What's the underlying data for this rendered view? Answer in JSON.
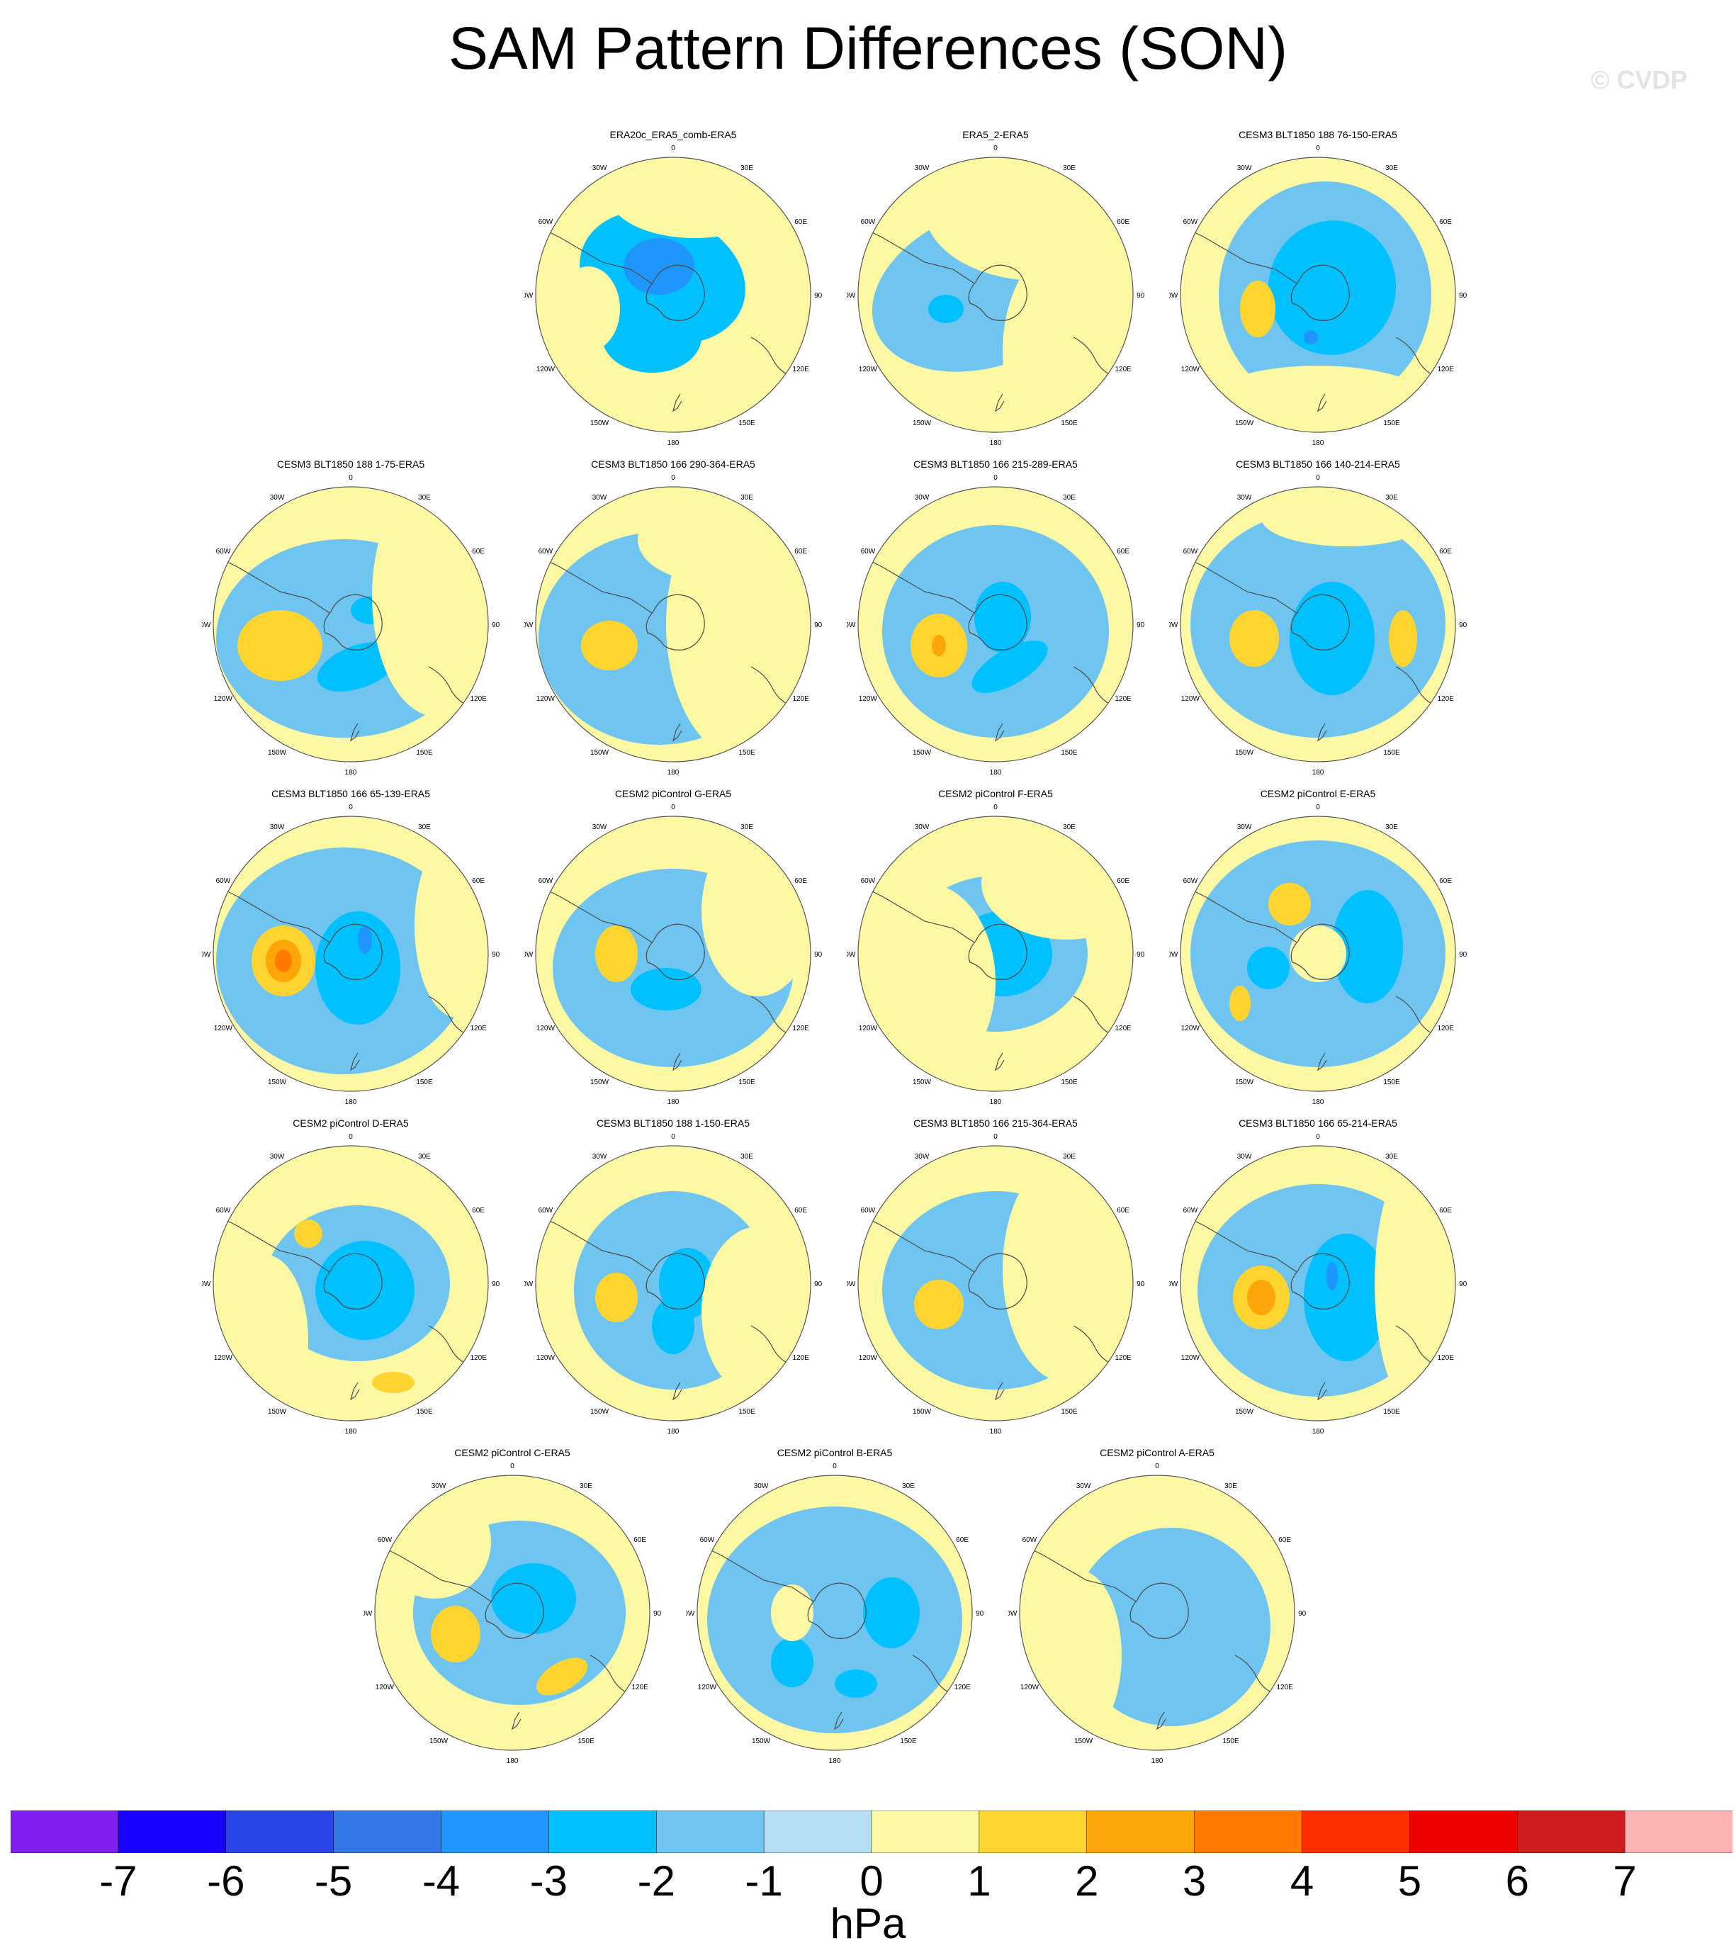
{
  "title": "SAM Pattern Differences (SON)",
  "watermark": "© CVDP",
  "lon_labels": [
    "0",
    "30E",
    "60E",
    "90E",
    "120E",
    "150E",
    "180",
    "150W",
    "120W",
    "90W",
    "60W",
    "30W"
  ],
  "colors": {
    "land_outline": "#4a4a4a",
    "levels": [
      "#7f1ff0",
      "#1a00ff",
      "#2a45e6",
      "#3377e8",
      "#1e96fb",
      "#00c0ff",
      "#6fc5f0",
      "#b5def5",
      "#fdf8a3",
      "#fed530",
      "#fea50a",
      "#fe7b00",
      "#fe2e00",
      "#ec0000",
      "#cf1c1c",
      "#ffb4b4"
    ]
  },
  "colorbar": {
    "ticks": [
      "-7",
      "-6",
      "-5",
      "-4",
      "-3",
      "-2",
      "-1",
      "0",
      "1",
      "2",
      "3",
      "4",
      "5",
      "6",
      "7"
    ],
    "unit": "hPa"
  },
  "panels": [
    {
      "title": "ERA20c_ERA5_comb-ERA5",
      "blobs": [
        [
          -15,
          -25,
          120,
          90,
          20,
          -2
        ],
        [
          -30,
          60,
          70,
          50,
          0,
          -2
        ],
        [
          -20,
          -40,
          50,
          40,
          0,
          -3
        ],
        [
          -120,
          20,
          45,
          60,
          0,
          0.5
        ],
        [
          30,
          -140,
          120,
          60,
          0,
          0.5
        ],
        [
          110,
          -150,
          25,
          25,
          0,
          0.5
        ]
      ]
    },
    {
      "title": "ERA5_2-ERA5",
      "blobs": [
        [
          -10,
          -10,
          170,
          110,
          -20,
          -1
        ],
        [
          -70,
          20,
          25,
          20,
          0,
          -2
        ],
        [
          60,
          -120,
          160,
          100,
          0,
          0.5
        ],
        [
          100,
          80,
          90,
          150,
          0,
          0.5
        ]
      ]
    },
    {
      "title": "CESM3 BLT1850 188 76-150-ERA5",
      "blobs": [
        [
          10,
          0,
          150,
          160,
          0,
          -1
        ],
        [
          20,
          -10,
          90,
          95,
          10,
          -2
        ],
        [
          -10,
          60,
          10,
          10,
          0,
          -3
        ],
        [
          -85,
          20,
          25,
          40,
          0,
          1
        ],
        [
          0,
          160,
          170,
          60,
          0,
          0.5
        ]
      ]
    },
    {
      "title": "CESM3 BLT1850 188 1-75-ERA5",
      "blobs": [
        [
          -10,
          20,
          180,
          140,
          0,
          -1
        ],
        [
          10,
          60,
          60,
          30,
          -20,
          -2
        ],
        [
          30,
          -20,
          30,
          20,
          0,
          -2
        ],
        [
          -100,
          30,
          60,
          50,
          0,
          1
        ],
        [
          120,
          -40,
          90,
          170,
          0,
          0.5
        ]
      ]
    },
    {
      "title": "CESM3 BLT1850 166 290-364-ERA5",
      "blobs": [
        [
          -20,
          20,
          170,
          150,
          0,
          -1
        ],
        [
          -90,
          30,
          40,
          35,
          0,
          1
        ],
        [
          100,
          0,
          110,
          190,
          0,
          0.5
        ],
        [
          50,
          -120,
          100,
          60,
          0,
          0.5
        ]
      ]
    },
    {
      "title": "CESM3 BLT1850 166 215-289-ERA5",
      "blobs": [
        [
          0,
          10,
          160,
          150,
          0,
          -1
        ],
        [
          10,
          -10,
          40,
          50,
          0,
          -2
        ],
        [
          20,
          60,
          60,
          25,
          -30,
          -2
        ],
        [
          -80,
          30,
          40,
          45,
          0,
          1
        ],
        [
          -80,
          30,
          10,
          15,
          0,
          2
        ]
      ]
    },
    {
      "title": "CESM3 BLT1850 166 140-214-ERA5",
      "blobs": [
        [
          0,
          0,
          180,
          160,
          0,
          -1
        ],
        [
          20,
          20,
          60,
          80,
          0,
          -2
        ],
        [
          -90,
          20,
          35,
          40,
          0,
          1
        ],
        [
          120,
          20,
          20,
          40,
          0,
          1
        ],
        [
          40,
          -150,
          120,
          40,
          0,
          0.5
        ]
      ]
    },
    {
      "title": "CESM3 BLT1850 166 65-139-ERA5",
      "blobs": [
        [
          -10,
          10,
          180,
          160,
          0,
          -1
        ],
        [
          10,
          20,
          60,
          80,
          0,
          -2
        ],
        [
          20,
          -20,
          10,
          20,
          0,
          -3
        ],
        [
          -95,
          10,
          45,
          50,
          0,
          1
        ],
        [
          -95,
          10,
          25,
          30,
          0,
          2
        ],
        [
          -95,
          10,
          12,
          16,
          0,
          3
        ],
        [
          150,
          -40,
          60,
          130,
          0,
          0.5
        ]
      ]
    },
    {
      "title": "CESM2 piControl G-ERA5",
      "blobs": [
        [
          0,
          20,
          170,
          140,
          0,
          -1
        ],
        [
          -10,
          50,
          50,
          30,
          0,
          -2
        ],
        [
          -80,
          0,
          30,
          40,
          0,
          1
        ],
        [
          120,
          -60,
          80,
          120,
          0,
          0.5
        ]
      ]
    },
    {
      "title": "CESM2 piControl F-ERA5",
      "blobs": [
        [
          0,
          0,
          130,
          110,
          0,
          -1
        ],
        [
          10,
          0,
          70,
          60,
          0,
          -2
        ],
        [
          -100,
          40,
          100,
          140,
          0,
          0.5
        ],
        [
          100,
          -100,
          120,
          80,
          0,
          0.5
        ]
      ]
    },
    {
      "title": "CESM2 piControl E-ERA5",
      "blobs": [
        [
          0,
          0,
          180,
          160,
          0,
          -1
        ],
        [
          70,
          -10,
          50,
          80,
          0,
          -2
        ],
        [
          -70,
          20,
          30,
          30,
          0,
          -2
        ],
        [
          -40,
          -70,
          30,
          30,
          0,
          1
        ],
        [
          -110,
          70,
          15,
          25,
          0,
          1
        ],
        [
          0,
          0,
          40,
          40,
          0,
          0.5
        ]
      ]
    },
    {
      "title": "CESM2 piControl D-ERA5",
      "blobs": [
        [
          10,
          0,
          130,
          110,
          0,
          -1
        ],
        [
          20,
          10,
          70,
          70,
          0,
          -2
        ],
        [
          -60,
          -70,
          20,
          20,
          0,
          1
        ],
        [
          60,
          140,
          30,
          15,
          0,
          1
        ],
        [
          -120,
          80,
          60,
          120,
          0,
          0.5
        ]
      ]
    },
    {
      "title": "CESM3 BLT1850 188 1-150-ERA5",
      "blobs": [
        [
          0,
          10,
          140,
          140,
          0,
          -1
        ],
        [
          20,
          0,
          40,
          50,
          0,
          -2
        ],
        [
          0,
          60,
          30,
          40,
          0,
          -2
        ],
        [
          -80,
          20,
          30,
          35,
          0,
          1
        ],
        [
          120,
          40,
          80,
          120,
          0,
          0.5
        ]
      ]
    },
    {
      "title": "CESM3 BLT1850 166 215-364-ERA5",
      "blobs": [
        [
          0,
          10,
          160,
          140,
          0,
          -1
        ],
        [
          -80,
          30,
          35,
          35,
          0,
          1
        ],
        [
          100,
          -20,
          90,
          160,
          0,
          0.5
        ]
      ]
    },
    {
      "title": "CESM3 BLT1850 166 65-214-ERA5",
      "blobs": [
        [
          0,
          10,
          170,
          150,
          0,
          -1
        ],
        [
          40,
          20,
          60,
          90,
          0,
          -2
        ],
        [
          20,
          -10,
          8,
          20,
          0,
          -3
        ],
        [
          -80,
          20,
          40,
          45,
          0,
          1
        ],
        [
          -80,
          20,
          20,
          25,
          0,
          2
        ],
        [
          140,
          0,
          60,
          180,
          0,
          0.5
        ]
      ]
    },
    {
      "title": "CESM2 piControl C-ERA5",
      "blobs": [
        [
          10,
          0,
          150,
          130,
          0,
          -1
        ],
        [
          30,
          -20,
          60,
          50,
          0,
          -2
        ],
        [
          -80,
          30,
          35,
          40,
          0,
          1
        ],
        [
          70,
          90,
          40,
          20,
          -30,
          1
        ],
        [
          -110,
          -100,
          80,
          80,
          0,
          0.5
        ]
      ]
    },
    {
      "title": "CESM2 piControl B-ERA5",
      "blobs": [
        [
          0,
          10,
          180,
          160,
          0,
          -1
        ],
        [
          80,
          0,
          40,
          50,
          0,
          -2
        ],
        [
          -60,
          70,
          30,
          35,
          0,
          -2
        ],
        [
          30,
          100,
          30,
          20,
          0,
          -2
        ],
        [
          -60,
          0,
          30,
          40,
          0,
          0.5
        ]
      ]
    },
    {
      "title": "CESM2 piControl A-ERA5",
      "blobs": [
        [
          20,
          20,
          140,
          140,
          0,
          -1
        ],
        [
          -80,
          20,
          25,
          30,
          0,
          1
        ],
        [
          -110,
          60,
          60,
          120,
          0,
          0.5
        ]
      ]
    }
  ]
}
